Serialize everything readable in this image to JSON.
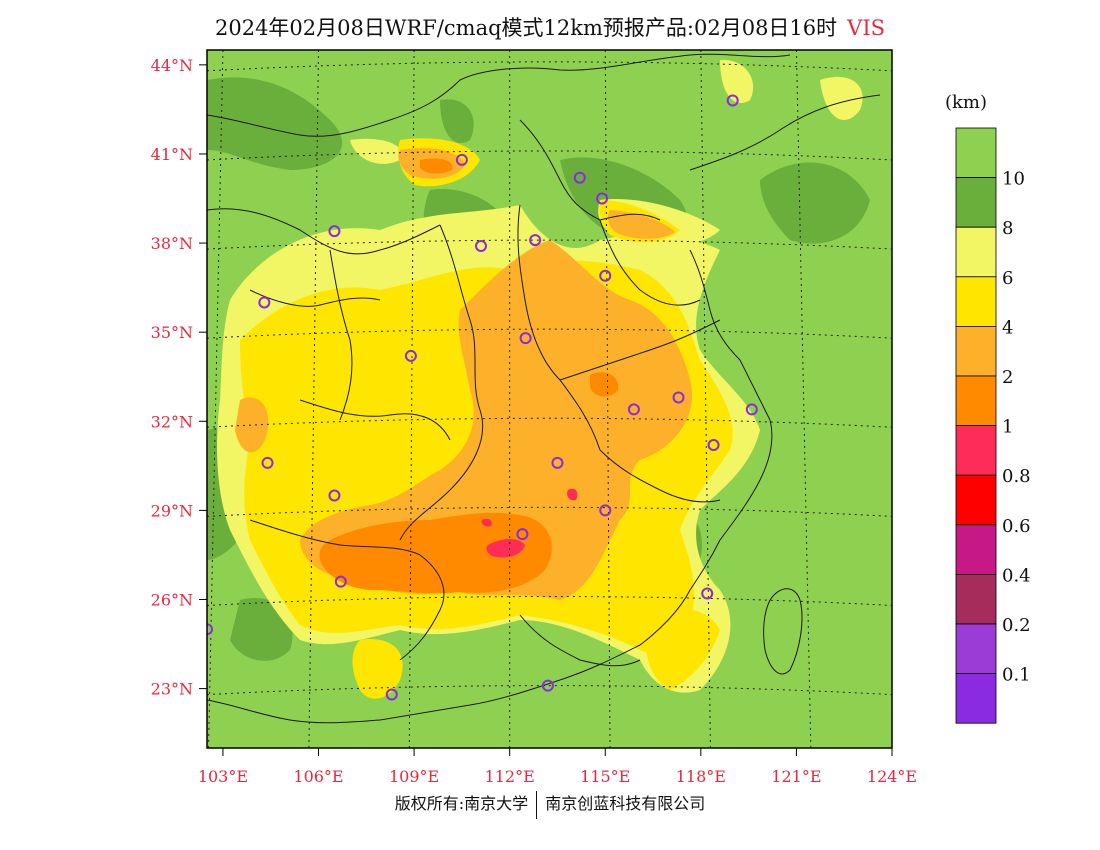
{
  "title": {
    "text": "2024年02月08日WRF/cmaq模式12km预报产品:02月08日16时",
    "variable": "VIS"
  },
  "map": {
    "lon_range": [
      102.5,
      124
    ],
    "lat_range": [
      21,
      44.5
    ],
    "lon_ticks": [
      "103°E",
      "106°E",
      "109°E",
      "112°E",
      "115°E",
      "118°E",
      "121°E",
      "124°E"
    ],
    "lat_ticks": [
      "44°N",
      "41°N",
      "38°N",
      "35°N",
      "32°N",
      "29°N",
      "26°N",
      "23°N"
    ],
    "tick_label_color": "#e8283c",
    "graticule": "dotted",
    "base_color": "#8ed150",
    "stations": [
      [
        119.0,
        42.8
      ],
      [
        110.5,
        40.8
      ],
      [
        114.2,
        40.2
      ],
      [
        114.9,
        39.5
      ],
      [
        106.5,
        38.4
      ],
      [
        111.1,
        37.9
      ],
      [
        112.8,
        38.1
      ],
      [
        115.0,
        36.9
      ],
      [
        104.3,
        36.0
      ],
      [
        112.5,
        34.8
      ],
      [
        108.9,
        34.2
      ],
      [
        115.9,
        32.4
      ],
      [
        117.3,
        32.8
      ],
      [
        119.6,
        32.4
      ],
      [
        104.4,
        30.6
      ],
      [
        113.5,
        30.6
      ],
      [
        118.4,
        31.2
      ],
      [
        106.5,
        29.5
      ],
      [
        115.0,
        29.0
      ],
      [
        112.4,
        28.2
      ],
      [
        106.7,
        26.6
      ],
      [
        118.2,
        26.2
      ],
      [
        102.5,
        25.0
      ],
      [
        108.3,
        22.8
      ],
      [
        113.2,
        23.1
      ]
    ],
    "station_color": "#8a2be2"
  },
  "legend": {
    "unit": "(km)",
    "levels": [
      {
        "label": "10",
        "color": "#8ed150"
      },
      {
        "label": "8",
        "color": "#6aaf3b"
      },
      {
        "label": "6",
        "color": "#f2f564"
      },
      {
        "label": "4",
        "color": "#ffe600"
      },
      {
        "label": "2",
        "color": "#fdb02a"
      },
      {
        "label": "1",
        "color": "#ff8a00"
      },
      {
        "label": "0.8",
        "color": "#fe2d58"
      },
      {
        "label": "0.6",
        "color": "#ff0000"
      },
      {
        "label": "0.4",
        "color": "#c61886"
      },
      {
        "label": "0.2",
        "color": "#a62c5c"
      },
      {
        "label": "0.1",
        "color": "#9c3cd6"
      },
      {
        "label": "",
        "color": "#8a2be2"
      }
    ]
  },
  "footer": {
    "left": "版权所有:南京大学",
    "right": "南京创蓝科技有限公司"
  }
}
